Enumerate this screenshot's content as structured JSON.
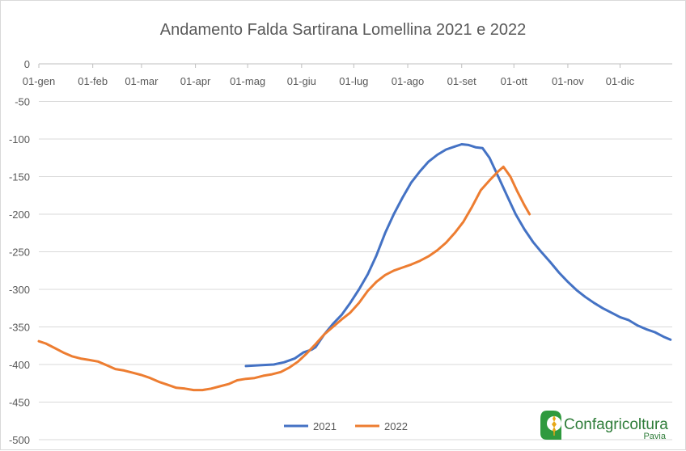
{
  "chart_data": {
    "type": "line",
    "title": "Andamento Falda Sartirana Lomellina 2021 e 2022",
    "xlabel": "",
    "ylabel": "",
    "x_unit": "day of year",
    "xlim": [
      1,
      365
    ],
    "ylim": [
      -500,
      0
    ],
    "y_ticks": [
      0,
      -50,
      -100,
      -150,
      -200,
      -250,
      -300,
      -350,
      -400,
      -450,
      -500
    ],
    "x_tick_labels": [
      "01-gen",
      "01-feb",
      "01-mar",
      "01-apr",
      "01-mag",
      "01-giu",
      "01-lug",
      "01-ago",
      "01-set",
      "01-ott",
      "01-nov",
      "01-dic"
    ],
    "x_tick_days": [
      1,
      32,
      60,
      91,
      121,
      152,
      182,
      213,
      244,
      274,
      305,
      335
    ],
    "grid": "horizontal",
    "legend_position": "bottom-center",
    "series": [
      {
        "name": "2021",
        "color": "#4472c4",
        "points": [
          [
            120,
            -402
          ],
          [
            128,
            -401
          ],
          [
            136,
            -400
          ],
          [
            142,
            -397
          ],
          [
            148,
            -392
          ],
          [
            153,
            -384
          ],
          [
            158,
            -380
          ],
          [
            160,
            -377
          ],
          [
            165,
            -360
          ],
          [
            170,
            -346
          ],
          [
            175,
            -334
          ],
          [
            180,
            -318
          ],
          [
            185,
            -300
          ],
          [
            190,
            -280
          ],
          [
            195,
            -255
          ],
          [
            200,
            -225
          ],
          [
            205,
            -200
          ],
          [
            210,
            -178
          ],
          [
            215,
            -158
          ],
          [
            220,
            -143
          ],
          [
            225,
            -130
          ],
          [
            230,
            -121
          ],
          [
            235,
            -114
          ],
          [
            240,
            -110
          ],
          [
            244,
            -107
          ],
          [
            248,
            -108
          ],
          [
            252,
            -111
          ],
          [
            256,
            -112
          ],
          [
            260,
            -125
          ],
          [
            265,
            -150
          ],
          [
            270,
            -175
          ],
          [
            275,
            -200
          ],
          [
            280,
            -220
          ],
          [
            285,
            -237
          ],
          [
            290,
            -251
          ],
          [
            295,
            -264
          ],
          [
            300,
            -278
          ],
          [
            305,
            -290
          ],
          [
            310,
            -301
          ],
          [
            315,
            -310
          ],
          [
            320,
            -318
          ],
          [
            325,
            -325
          ],
          [
            330,
            -331
          ],
          [
            335,
            -337
          ],
          [
            340,
            -341
          ],
          [
            345,
            -348
          ],
          [
            350,
            -353
          ],
          [
            355,
            -357
          ],
          [
            360,
            -363
          ],
          [
            364,
            -367
          ]
        ]
      },
      {
        "name": "2022",
        "color": "#ed7d31",
        "points": [
          [
            1,
            -369
          ],
          [
            5,
            -372
          ],
          [
            10,
            -378
          ],
          [
            15,
            -384
          ],
          [
            20,
            -389
          ],
          [
            25,
            -392
          ],
          [
            30,
            -394
          ],
          [
            35,
            -396
          ],
          [
            40,
            -401
          ],
          [
            45,
            -406
          ],
          [
            50,
            -408
          ],
          [
            55,
            -411
          ],
          [
            60,
            -414
          ],
          [
            65,
            -418
          ],
          [
            70,
            -423
          ],
          [
            75,
            -427
          ],
          [
            80,
            -431
          ],
          [
            85,
            -432
          ],
          [
            90,
            -434
          ],
          [
            95,
            -434
          ],
          [
            100,
            -432
          ],
          [
            105,
            -429
          ],
          [
            110,
            -426
          ],
          [
            115,
            -421
          ],
          [
            120,
            -419
          ],
          [
            125,
            -418
          ],
          [
            130,
            -415
          ],
          [
            135,
            -413
          ],
          [
            140,
            -410
          ],
          [
            145,
            -404
          ],
          [
            150,
            -396
          ],
          [
            155,
            -385
          ],
          [
            160,
            -373
          ],
          [
            165,
            -360
          ],
          [
            170,
            -350
          ],
          [
            175,
            -340
          ],
          [
            180,
            -331
          ],
          [
            185,
            -318
          ],
          [
            190,
            -302
          ],
          [
            195,
            -290
          ],
          [
            200,
            -281
          ],
          [
            205,
            -275
          ],
          [
            210,
            -271
          ],
          [
            215,
            -267
          ],
          [
            220,
            -262
          ],
          [
            225,
            -256
          ],
          [
            230,
            -248
          ],
          [
            235,
            -238
          ],
          [
            240,
            -225
          ],
          [
            245,
            -210
          ],
          [
            250,
            -190
          ],
          [
            255,
            -168
          ],
          [
            260,
            -155
          ],
          [
            265,
            -143
          ],
          [
            268,
            -137
          ],
          [
            272,
            -150
          ],
          [
            276,
            -170
          ],
          [
            280,
            -188
          ],
          [
            283,
            -200
          ]
        ]
      }
    ]
  },
  "logo": {
    "name": "Confagricoltura",
    "sub": "Pavia"
  }
}
